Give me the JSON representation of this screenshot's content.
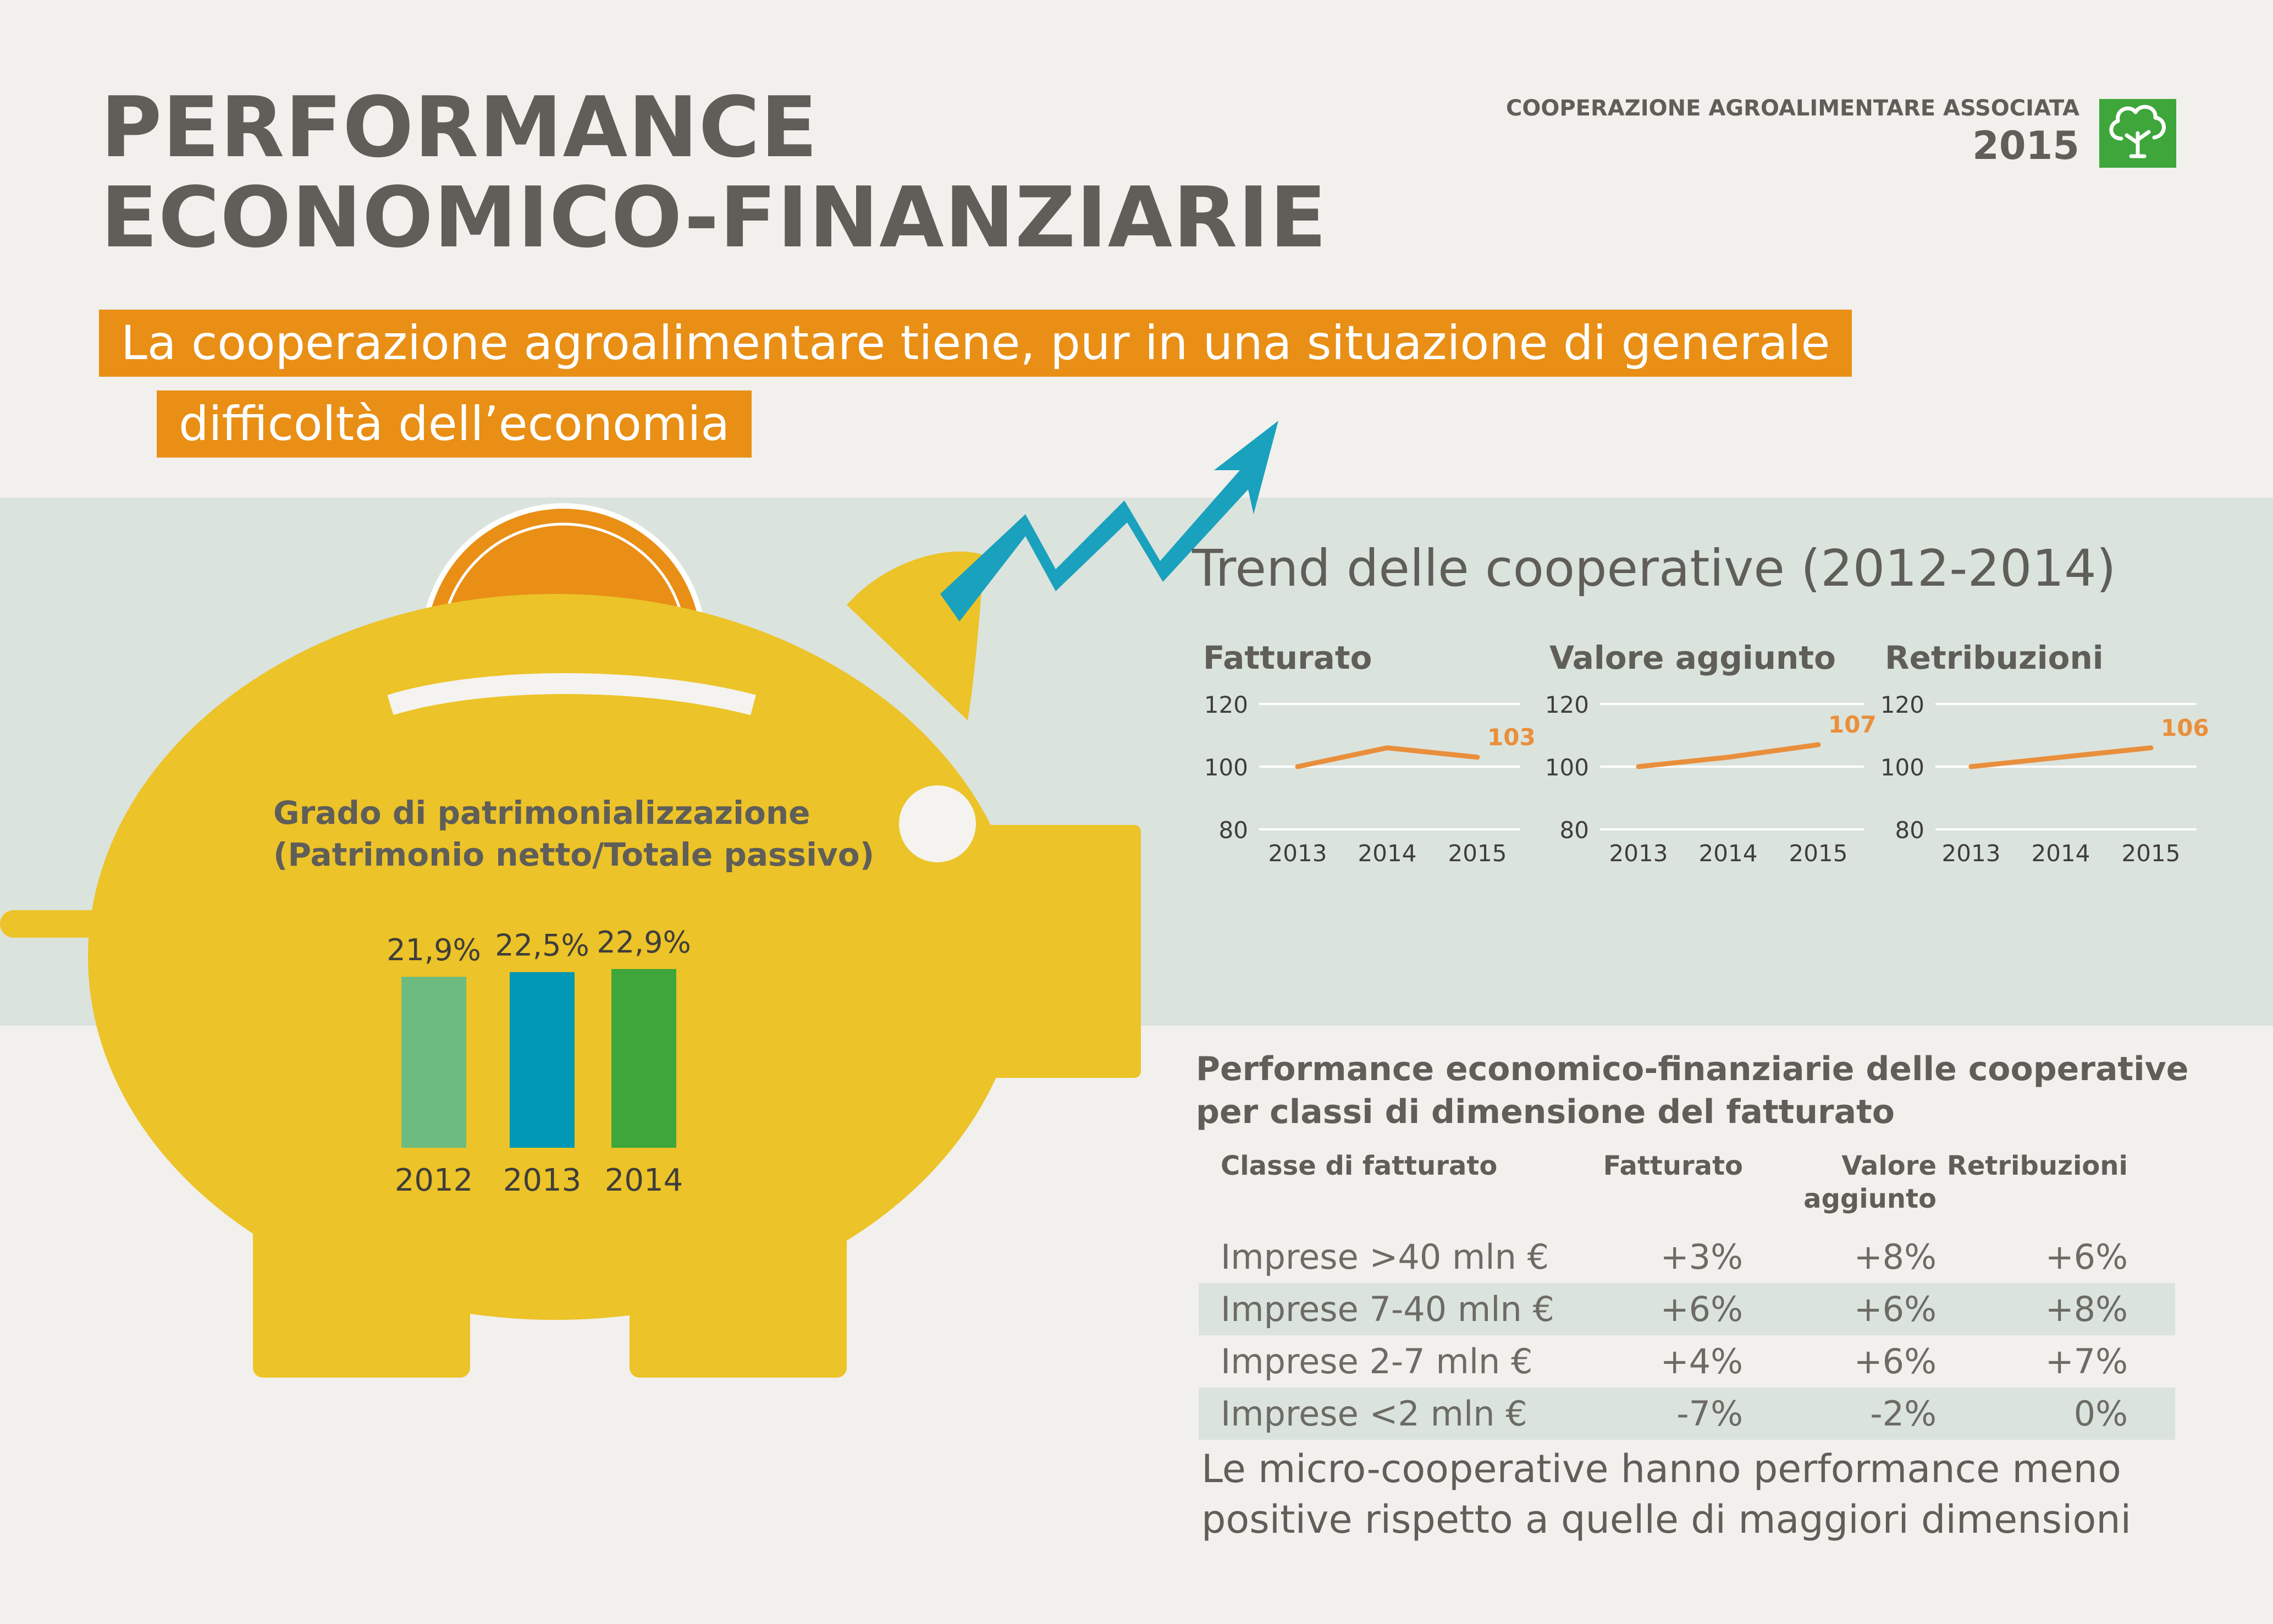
{
  "header": {
    "title_line1": "PERFORMANCE",
    "title_line2": "ECONOMICO-FINANZIARIE",
    "org_name": "COOPERAZIONE AGROALIMENTARE ASSOCIATA",
    "org_year": "2015",
    "subtitle_line1": "La cooperazione agroalimentare tiene, pur in una situazione di generale",
    "subtitle_line2": "difficoltà dell’economia"
  },
  "colors": {
    "background": "#f1f0ec",
    "band": "#dbe3dd",
    "title_gray": "#5f5e59",
    "accent_orange": "#e98f16",
    "pig_yellow": "#ecc328",
    "arrow_teal": "#1aa1bd",
    "logo_green": "#3ea63a",
    "bar_2012": "#6dbb7f",
    "bar_2013": "#0098b4",
    "bar_2014": "#3ea63a",
    "line_orange": "#e98f3c"
  },
  "icons": {
    "logo": "tree-icon",
    "arrow": "trend-up-arrow-icon",
    "illustration": "piggy-bank-icon",
    "coin": "coin-icon"
  },
  "trend": {
    "title": "Trend delle cooperative (2012-2014)"
  },
  "patrimonio": {
    "title_line1": "Grado di patrimonializzazione",
    "title_line2": "(Patrimonio netto/Totale passivo)"
  },
  "table": {
    "title_line1": "Performance economico-finanziarie delle cooperative",
    "title_line2": "per classi di dimensione del fatturato",
    "headers": {
      "classe": "Classe di fatturato",
      "fatturato": "Fatturato",
      "valore_line1": "Valore",
      "valore_line2": "aggiunto",
      "retribuzioni": "Retribuzioni"
    },
    "rows": [
      {
        "classe": "Imprese >40 mln €",
        "fatturato": "+3%",
        "valore": "+8%",
        "retribuzioni": "+6%"
      },
      {
        "classe": "Imprese 7-40 mln €",
        "fatturato": "+6%",
        "valore": "+6%",
        "retribuzioni": "+8%"
      },
      {
        "classe": "Imprese 2-7 mln €",
        "fatturato": "+4%",
        "valore": "+6%",
        "retribuzioni": "+7%"
      },
      {
        "classe": "Imprese <2 mln €",
        "fatturato": "-7%",
        "valore": "-2%",
        "retribuzioni": "0%"
      }
    ],
    "conclusion_line1": "Le micro-cooperative hanno performance meno",
    "conclusion_line2": "positive rispetto a quelle di maggiori dimensioni"
  },
  "chart_data": [
    {
      "type": "line",
      "title": "Fatturato",
      "x": [
        "2013",
        "2014",
        "2015"
      ],
      "values": [
        100,
        106,
        103
      ],
      "ylim": [
        80,
        120
      ],
      "yticks": [
        "80",
        "100",
        "120"
      ],
      "end_label": "103",
      "grid": true
    },
    {
      "type": "line",
      "title": "Valore aggiunto",
      "x": [
        "2013",
        "2014",
        "2015"
      ],
      "values": [
        100,
        103,
        107
      ],
      "ylim": [
        80,
        120
      ],
      "yticks": [
        "80",
        "100",
        "120"
      ],
      "end_label": "107",
      "grid": true
    },
    {
      "type": "line",
      "title": "Retribuzioni",
      "x": [
        "2013",
        "2014",
        "2015"
      ],
      "values": [
        100,
        103,
        106
      ],
      "ylim": [
        80,
        120
      ],
      "yticks": [
        "80",
        "100",
        "120"
      ],
      "end_label": "106",
      "grid": true
    },
    {
      "type": "bar",
      "categories": [
        "2012",
        "2013",
        "2014"
      ],
      "values": [
        21.9,
        22.5,
        22.9
      ],
      "value_labels": [
        "21,9%",
        "22,5%",
        "22,9%"
      ]
    }
  ]
}
